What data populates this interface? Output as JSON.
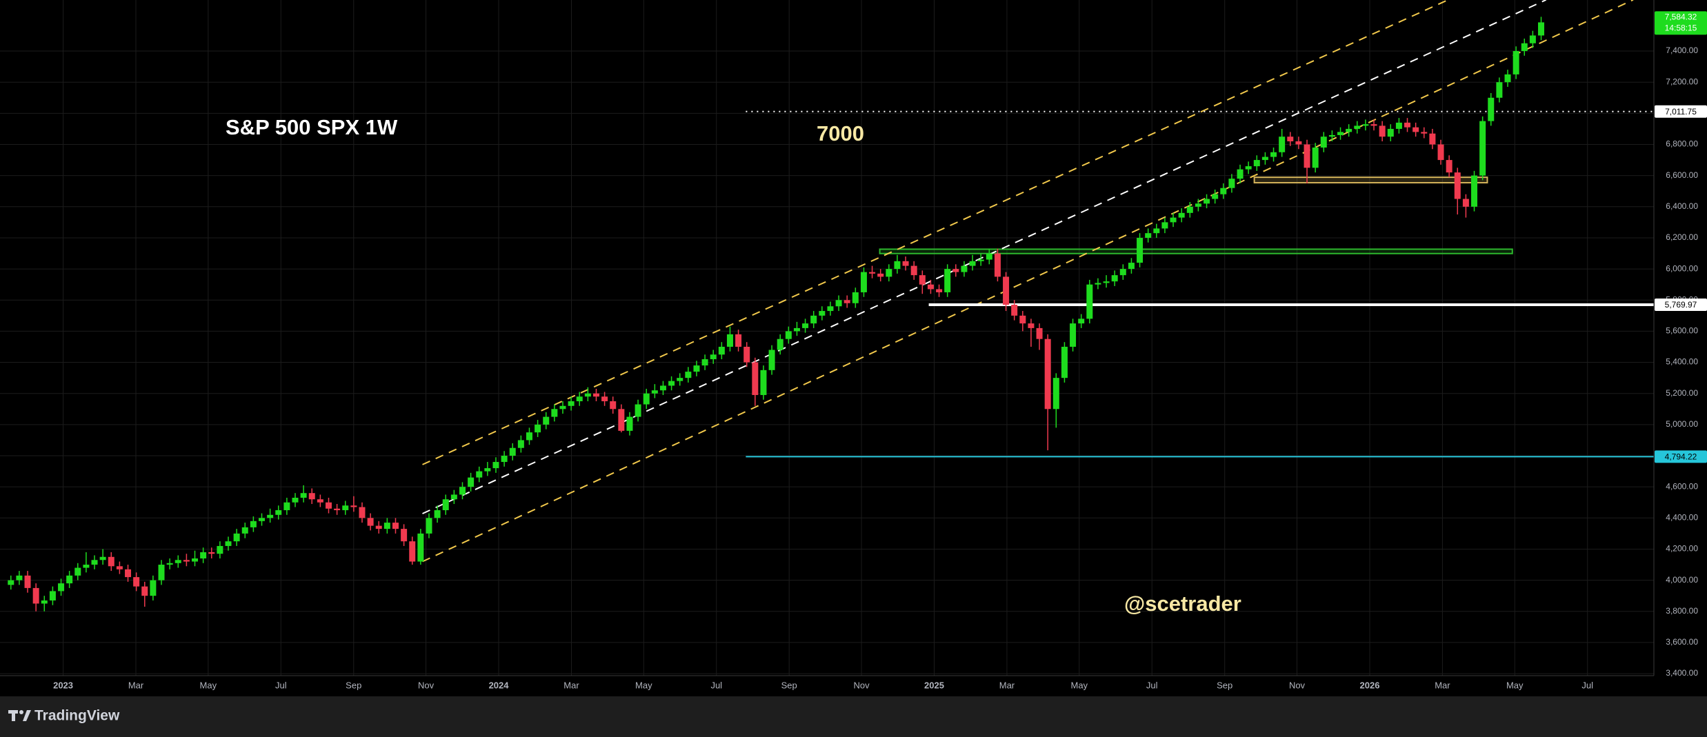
{
  "chart_data": {
    "type": "candlestick",
    "title": "S&P 500 SPX 1W",
    "annotations": [
      "7000",
      "@scetrader"
    ],
    "watermark": "TradingView",
    "up_color": "#1edc1e",
    "down_color": "#f03a4f",
    "grid": true,
    "xlim": [
      2022.855,
      2026.6525
    ],
    "ylim": [
      3387,
      7728
    ],
    "xticks": [
      2023,
      {
        "value": 2023.167,
        "label": "Mar"
      },
      {
        "value": 2023.333,
        "label": "May"
      },
      {
        "value": 2023.5,
        "label": "Jul"
      },
      {
        "value": 2023.667,
        "label": "Sep"
      },
      {
        "value": 2023.833,
        "label": "Nov"
      },
      2024,
      {
        "value": 2024.167,
        "label": "Mar"
      },
      {
        "value": 2024.333,
        "label": "May"
      },
      {
        "value": 2024.5,
        "label": "Jul"
      },
      {
        "value": 2024.667,
        "label": "Sep"
      },
      {
        "value": 2024.833,
        "label": "Nov"
      },
      2025,
      {
        "value": 2025.167,
        "label": "Mar"
      },
      {
        "value": 2025.333,
        "label": "May"
      },
      {
        "value": 2025.5,
        "label": "Jul"
      },
      {
        "value": 2025.667,
        "label": "Sep"
      },
      {
        "value": 2025.833,
        "label": "Nov"
      },
      2026,
      {
        "value": 2026.167,
        "label": "Mar"
      },
      {
        "value": 2026.333,
        "label": "May"
      },
      {
        "value": 2026.5,
        "label": "Jul"
      }
    ],
    "yticks": [
      {
        "value": 3400,
        "label": "3,400.00"
      },
      {
        "value": 3600,
        "label": "3,600.00"
      },
      {
        "value": 3800,
        "label": "3,800.00"
      },
      {
        "value": 4000,
        "label": "4,000.00"
      },
      {
        "value": 4200,
        "label": "4,200.00"
      },
      {
        "value": 4400,
        "label": "4,400.00"
      },
      {
        "value": 4600,
        "label": "4,600.00"
      },
      {
        "value": 4800,
        "label": "4,800.00"
      },
      {
        "value": 5000,
        "label": "5,000.00"
      },
      {
        "value": 5200,
        "label": "5,200.00"
      },
      {
        "value": 5400,
        "label": "5,400.00"
      },
      {
        "value": 5600,
        "label": "5,600.00"
      },
      {
        "value": 5800,
        "label": "5,800.00"
      },
      {
        "value": 6000,
        "label": "6,000.00"
      },
      {
        "value": 6200,
        "label": "6,200.00"
      },
      {
        "value": 6400,
        "label": "6,400.00"
      },
      {
        "value": 6600,
        "label": "6,600.00"
      },
      {
        "value": 6800,
        "label": "6,800.00"
      },
      {
        "value": 7000,
        "label": "7,000.00"
      },
      {
        "value": 7200,
        "label": "7,200.00"
      },
      {
        "value": 7400,
        "label": "7,400.00"
      }
    ],
    "x": [
      2022.88,
      2022.8992,
      2022.9184,
      2022.9376,
      2022.9568,
      2022.976,
      2022.9952,
      2023.0144,
      2023.0336,
      2023.0528,
      2023.072,
      2023.0912,
      2023.1104,
      2023.1296,
      2023.1488,
      2023.168,
      2023.1872,
      2023.2064,
      2023.2256,
      2023.2448,
      2023.264,
      2023.2832,
      2023.3024,
      2023.3216,
      2023.3408,
      2023.36,
      2023.3792,
      2023.3984,
      2023.4176,
      2023.4368,
      2023.456,
      2023.4752,
      2023.4944,
      2023.5136,
      2023.5328,
      2023.552,
      2023.5712,
      2023.5904,
      2023.6096,
      2023.6288,
      2023.648,
      2023.6672,
      2023.6864,
      2023.7056,
      2023.7248,
      2023.744,
      2023.7632,
      2023.7824,
      2023.8016,
      2023.8208,
      2023.84,
      2023.8592,
      2023.8784,
      2023.8976,
      2023.9168,
      2023.936,
      2023.9552,
      2023.9744,
      2023.9936,
      2024.0128,
      2024.032,
      2024.0512,
      2024.0704,
      2024.0896,
      2024.1088,
      2024.128,
      2024.1472,
      2024.1664,
      2024.1856,
      2024.2048,
      2024.224,
      2024.2432,
      2024.2624,
      2024.2816,
      2024.3008,
      2024.32,
      2024.3392,
      2024.3584,
      2024.3776,
      2024.3968,
      2024.416,
      2024.4352,
      2024.4544,
      2024.4736,
      2024.4928,
      2024.512,
      2024.5312,
      2024.5504,
      2024.5696,
      2024.5888,
      2024.608,
      2024.6272,
      2024.6464,
      2024.6656,
      2024.6848,
      2024.704,
      2024.7232,
      2024.7424,
      2024.7616,
      2024.7808,
      2024.8,
      2024.8192,
      2024.8384,
      2024.8576,
      2024.8768,
      2024.896,
      2024.9152,
      2024.9344,
      2024.9536,
      2024.9728,
      2024.992,
      2025.0112,
      2025.0304,
      2025.0496,
      2025.0688,
      2025.088,
      2025.1072,
      2025.1264,
      2025.1456,
      2025.1648,
      2025.184,
      2025.2032,
      2025.2224,
      2025.2416,
      2025.2608,
      2025.28,
      2025.2992,
      2025.3184,
      2025.3376,
      2025.3568,
      2025.376,
      2025.3952,
      2025.4144,
      2025.4336,
      2025.4528,
      2025.472,
      2025.4912,
      2025.5104,
      2025.5296,
      2025.5488,
      2025.568,
      2025.5872,
      2025.6064,
      2025.6256,
      2025.6448,
      2025.664,
      2025.6832,
      2025.7024,
      2025.7216,
      2025.7408,
      2025.76,
      2025.7792,
      2025.7984,
      2025.8176,
      2025.8368,
      2025.856,
      2025.8752,
      2025.8944,
      2025.9136,
      2025.9328,
      2025.952,
      2025.9712,
      2025.9904,
      2026.0096,
      2026.0288,
      2026.048,
      2026.0672,
      2026.0864,
      2026.1056,
      2026.1248,
      2026.144,
      2026.1632,
      2026.1824,
      2026.2016,
      2026.2208,
      2026.24,
      2026.2592,
      2026.2784,
      2026.2976,
      2026.3168,
      2026.336,
      2026.3552,
      2026.3744,
      2026.3936
    ],
    "open": [
      3970,
      4000,
      4030,
      3950,
      3850,
      3870,
      3930,
      3980,
      4030,
      4080,
      4100,
      4130,
      4150,
      4090,
      4070,
      4020,
      3960,
      3900,
      4000,
      4100,
      4110,
      4130,
      4120,
      4140,
      4180,
      4170,
      4220,
      4250,
      4300,
      4340,
      4380,
      4400,
      4420,
      4450,
      4500,
      4530,
      4560,
      4520,
      4500,
      4460,
      4450,
      4480,
      4470,
      4400,
      4350,
      4330,
      4370,
      4330,
      4250,
      4120,
      4300,
      4400,
      4450,
      4520,
      4550,
      4600,
      4660,
      4700,
      4720,
      4760,
      4800,
      4850,
      4900,
      4950,
      5000,
      5050,
      5100,
      5120,
      5150,
      5180,
      5200,
      5180,
      5150,
      5100,
      4960,
      5050,
      5130,
      5200,
      5220,
      5250,
      5280,
      5300,
      5340,
      5380,
      5420,
      5450,
      5500,
      5580,
      5500,
      5400,
      5190,
      5350,
      5480,
      5550,
      5600,
      5620,
      5650,
      5700,
      5730,
      5760,
      5800,
      5780,
      5850,
      5980,
      5970,
      5950,
      6000,
      6050,
      6020,
      5960,
      5900,
      5870,
      5850,
      6000,
      5980,
      6020,
      6050,
      6060,
      6100,
      5950,
      5770,
      5700,
      5650,
      5620,
      5550,
      5100,
      5300,
      5500,
      5650,
      5680,
      5900,
      5910,
      5920,
      5960,
      6000,
      6040,
      6200,
      6230,
      6260,
      6300,
      6330,
      6360,
      6400,
      6420,
      6450,
      6480,
      6520,
      6580,
      6640,
      6660,
      6700,
      6720,
      6750,
      6850,
      6820,
      6800,
      6650,
      6780,
      6850,
      6860,
      6880,
      6900,
      6920,
      6930,
      6920,
      6850,
      6900,
      6940,
      6910,
      6880,
      6870,
      6800,
      6700,
      6620,
      6450,
      6400,
      6600,
      6950,
      7100,
      7200,
      7250,
      7400,
      7450,
      7500
    ],
    "high": [
      4030,
      4060,
      4060,
      3980,
      3900,
      3960,
      4010,
      4060,
      4110,
      4180,
      4160,
      4200,
      4180,
      4120,
      4100,
      4050,
      3990,
      4030,
      4130,
      4140,
      4160,
      4170,
      4190,
      4210,
      4210,
      4250,
      4280,
      4330,
      4370,
      4410,
      4430,
      4460,
      4480,
      4530,
      4560,
      4610,
      4590,
      4550,
      4530,
      4490,
      4510,
      4540,
      4500,
      4430,
      4380,
      4400,
      4400,
      4360,
      4280,
      4330,
      4430,
      4480,
      4550,
      4580,
      4630,
      4690,
      4730,
      4760,
      4790,
      4830,
      4880,
      4930,
      4980,
      5030,
      5080,
      5130,
      5150,
      5180,
      5210,
      5240,
      5230,
      5210,
      5180,
      5130,
      5080,
      5160,
      5230,
      5260,
      5280,
      5310,
      5330,
      5370,
      5410,
      5450,
      5480,
      5530,
      5630,
      5610,
      5530,
      5430,
      5380,
      5510,
      5580,
      5630,
      5660,
      5680,
      5730,
      5760,
      5790,
      5830,
      5830,
      5880,
      6010,
      6020,
      6000,
      6030,
      6090,
      6080,
      6050,
      5990,
      5930,
      5900,
      6030,
      6030,
      6050,
      6090,
      6100,
      6130,
      6130,
      5980,
      5800,
      5730,
      5680,
      5650,
      5580,
      5330,
      5530,
      5680,
      5710,
      5930,
      5940,
      5960,
      5990,
      6030,
      6070,
      6230,
      6260,
      6290,
      6330,
      6360,
      6390,
      6430,
      6450,
      6480,
      6510,
      6550,
      6610,
      6670,
      6690,
      6730,
      6750,
      6780,
      6900,
      6880,
      6850,
      6830,
      6810,
      6880,
      6890,
      6910,
      6930,
      6950,
      6960,
      6960,
      6950,
      6930,
      6970,
      6970,
      6940,
      6910,
      6900,
      6830,
      6730,
      6650,
      6480,
      6630,
      6980,
      7130,
      7230,
      7280,
      7430,
      7480,
      7530,
      7620
    ],
    "low": [
      3940,
      3970,
      3920,
      3800,
      3800,
      3840,
      3900,
      3950,
      4000,
      4050,
      4070,
      4100,
      4060,
      4040,
      3990,
      3930,
      3830,
      3870,
      3970,
      4070,
      4080,
      4090,
      4090,
      4110,
      4140,
      4140,
      4190,
      4220,
      4270,
      4310,
      4350,
      4370,
      4390,
      4420,
      4470,
      4500,
      4490,
      4470,
      4430,
      4420,
      4420,
      4440,
      4370,
      4320,
      4300,
      4300,
      4300,
      4220,
      4100,
      4100,
      4270,
      4370,
      4420,
      4490,
      4520,
      4570,
      4630,
      4670,
      4690,
      4730,
      4770,
      4820,
      4870,
      4920,
      4970,
      5020,
      5070,
      5090,
      5120,
      5150,
      5150,
      5120,
      5070,
      4950,
      4930,
      5020,
      5100,
      5170,
      5190,
      5220,
      5250,
      5270,
      5310,
      5350,
      5390,
      5420,
      5470,
      5470,
      5370,
      5120,
      5160,
      5320,
      5450,
      5520,
      5570,
      5590,
      5620,
      5670,
      5700,
      5730,
      5750,
      5750,
      5820,
      5940,
      5920,
      5920,
      5970,
      5990,
      5930,
      5840,
      5840,
      5820,
      5820,
      5950,
      5950,
      5990,
      6020,
      6030,
      5920,
      5730,
      5670,
      5600,
      5500,
      5480,
      4835,
      4980,
      5270,
      5470,
      5620,
      5650,
      5870,
      5880,
      5890,
      5930,
      5970,
      6010,
      6170,
      6200,
      6230,
      6270,
      6300,
      6330,
      6370,
      6390,
      6420,
      6450,
      6490,
      6550,
      6610,
      6630,
      6670,
      6690,
      6720,
      6790,
      6770,
      6550,
      6620,
      6750,
      6820,
      6830,
      6850,
      6870,
      6890,
      6890,
      6820,
      6820,
      6870,
      6880,
      6850,
      6840,
      6770,
      6670,
      6590,
      6350,
      6330,
      6370,
      6570,
      6920,
      7070,
      7170,
      7220,
      7370,
      7420,
      7470
    ],
    "close": [
      4000,
      4030,
      3950,
      3850,
      3870,
      3930,
      3980,
      4030,
      4080,
      4100,
      4130,
      4150,
      4090,
      4070,
      4020,
      3960,
      3900,
      4000,
      4100,
      4110,
      4130,
      4120,
      4140,
      4180,
      4170,
      4220,
      4250,
      4300,
      4340,
      4380,
      4400,
      4420,
      4450,
      4500,
      4530,
      4560,
      4520,
      4500,
      4460,
      4450,
      4480,
      4470,
      4400,
      4350,
      4330,
      4370,
      4330,
      4250,
      4120,
      4300,
      4400,
      4450,
      4520,
      4550,
      4600,
      4660,
      4700,
      4720,
      4760,
      4800,
      4850,
      4900,
      4950,
      5000,
      5050,
      5100,
      5120,
      5150,
      5180,
      5200,
      5180,
      5150,
      5100,
      4960,
      5050,
      5130,
      5200,
      5220,
      5250,
      5280,
      5300,
      5340,
      5380,
      5420,
      5450,
      5500,
      5580,
      5500,
      5400,
      5190,
      5350,
      5480,
      5550,
      5600,
      5620,
      5650,
      5700,
      5730,
      5760,
      5800,
      5780,
      5850,
      5980,
      5970,
      5950,
      6000,
      6050,
      6020,
      5960,
      5900,
      5870,
      5850,
      6000,
      5980,
      6020,
      6050,
      6060,
      6100,
      5950,
      5770,
      5700,
      5650,
      5620,
      5550,
      5100,
      5300,
      5500,
      5650,
      5680,
      5900,
      5910,
      5920,
      5960,
      6000,
      6040,
      6200,
      6230,
      6260,
      6300,
      6330,
      6360,
      6400,
      6420,
      6450,
      6480,
      6520,
      6580,
      6640,
      6660,
      6700,
      6720,
      6750,
      6850,
      6820,
      6800,
      6650,
      6780,
      6850,
      6860,
      6880,
      6900,
      6920,
      6930,
      6920,
      6850,
      6900,
      6940,
      6910,
      6880,
      6870,
      6800,
      6700,
      6620,
      6450,
      6400,
      6600,
      6950,
      7100,
      7200,
      7250,
      7400,
      7450,
      7500,
      7584.32
    ],
    "channel_lines": [
      {
        "color": "#f2c94c",
        "x": [
          2023.825,
          2026.18
        ],
        "y": [
          4743,
          7729
        ]
      },
      {
        "color": "#ffffff",
        "x": [
          2023.825,
          2026.405
        ],
        "y": [
          4428,
          7729
        ]
      },
      {
        "color": "#f2c94c",
        "x": [
          2023.825,
          2026.605
        ],
        "y": [
          4120,
          7729
        ]
      }
    ],
    "zones": [
      {
        "color": "#2db82d",
        "x": [
          2024.875,
          2026.3275
        ],
        "y": [
          6099,
          6127
        ]
      },
      {
        "color": "#d4b35a",
        "x": [
          2025.735,
          2026.27
        ],
        "y": [
          6554,
          6589
        ]
      }
    ],
    "levels": [
      {
        "value": 7011.75,
        "label": "7,011.75",
        "x_start": 2024.5675,
        "color": "#ffffff",
        "style": "dotted"
      },
      {
        "value": 5769.97,
        "label": "5,769.97",
        "x_start": 2024.9875,
        "color": "#ffffff",
        "style": "thick"
      },
      {
        "value": 4794.22,
        "label": "4,794.22",
        "x_start": 2024.5675,
        "color": "#26c6da",
        "style": "solid"
      }
    ],
    "price_tag": {
      "value": 7584.32,
      "label": "7,584.32",
      "time": "14:58:15"
    }
  }
}
